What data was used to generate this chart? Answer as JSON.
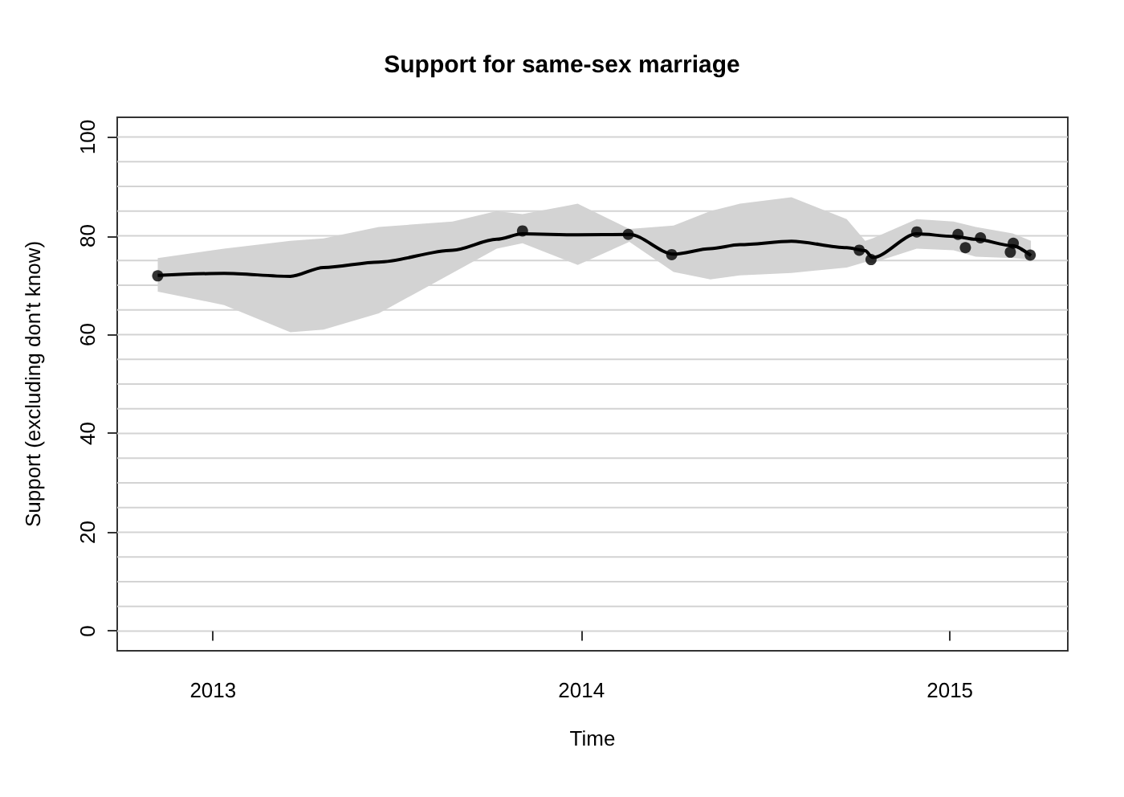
{
  "chart_data": {
    "type": "line",
    "title": "Support for same-sex marriage",
    "xlabel": "Time",
    "ylabel": "Support (excluding don't know)",
    "xlim": [
      2012.74,
      2015.32
    ],
    "xticks": [
      2013,
      2014,
      2015
    ],
    "ylim": [
      -4,
      104
    ],
    "yticks": [
      0,
      {
        "value": 5,
        "label": null
      },
      {
        "value": 10,
        "label": null
      },
      {
        "value": 15,
        "label": null
      },
      20,
      {
        "value": 25,
        "label": null
      },
      {
        "value": 30,
        "label": null
      },
      {
        "value": 35,
        "label": null
      },
      40,
      {
        "value": 45,
        "label": null
      },
      {
        "value": 50,
        "label": null
      },
      {
        "value": 55,
        "label": null
      },
      60,
      {
        "value": 65,
        "label": null
      },
      {
        "value": 70,
        "label": null
      },
      {
        "value": 75,
        "label": null
      },
      80,
      {
        "value": 85,
        "label": null
      },
      {
        "value": 90,
        "label": null
      },
      {
        "value": 95,
        "label": null
      },
      100
    ],
    "grid": "y",
    "series": [
      {
        "type": "line",
        "color": "#000000",
        "marker": "none",
        "x": [
          2012.85,
          2013.03,
          2013.21,
          2013.3,
          2013.45,
          2013.65,
          2013.77,
          2013.84,
          2013.99,
          2014.13,
          2014.25,
          2014.35,
          2014.43,
          2014.57,
          2014.72,
          2014.77,
          2014.79,
          2014.91,
          2015.01,
          2015.07,
          2015.17,
          2015.22
        ],
        "values": [
          72,
          72.4,
          71.8,
          73.6,
          74.7,
          77.1,
          79.3,
          80.4,
          80.2,
          80.3,
          76.3,
          77.4,
          78.2,
          78.9,
          77.6,
          77,
          75.6,
          80.4,
          79.9,
          79.3,
          78,
          76
        ],
        "lower": [
          68.7,
          66,
          60.5,
          61,
          64.3,
          72.5,
          77.4,
          78.5,
          74.1,
          78.8,
          72.7,
          71.2,
          72,
          72.5,
          73.6,
          74.7,
          74.5,
          77.4,
          77.1,
          75.8,
          75.5,
          75.2
        ],
        "upper": [
          75.5,
          77.4,
          79,
          79.5,
          81.8,
          82.9,
          85,
          84.4,
          86.5,
          81.4,
          82.1,
          85,
          86.5,
          87.8,
          83.4,
          79,
          79.5,
          83.4,
          82.9,
          81.8,
          80.5,
          79
        ]
      },
      {
        "type": "scatter",
        "color": "#000000",
        "marker": "circle",
        "x": [
          2012.85,
          2013.84,
          2014.127,
          2014.245,
          2014.754,
          2014.786,
          2014.91,
          2015.022,
          2015.042,
          2015.083,
          2015.164,
          2015.172,
          2015.218
        ],
        "values": [
          71.9,
          81,
          80.3,
          76.2,
          77.1,
          75.2,
          80.8,
          80.3,
          77.6,
          79.6,
          76.7,
          78.5,
          76.1
        ]
      }
    ]
  }
}
